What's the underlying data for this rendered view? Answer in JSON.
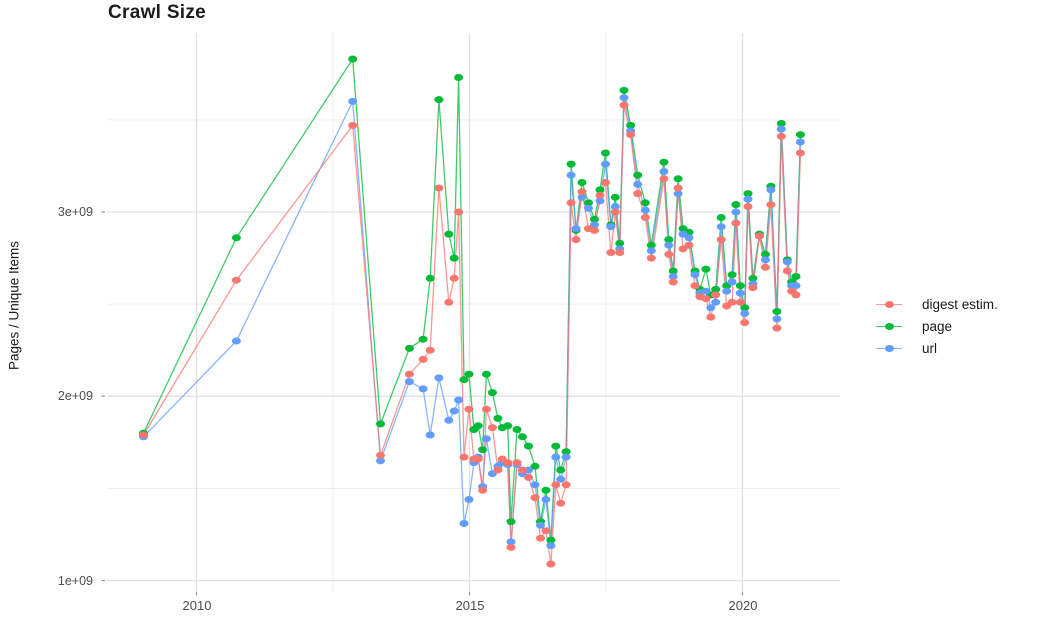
{
  "title": {
    "text": "Crawl Size"
  },
  "y_axis": {
    "label": "Pages / Unique Items",
    "ticks": [
      "3e+09",
      "2e+09",
      "1e+09"
    ]
  },
  "x_axis": {
    "ticks": [
      "2010",
      "2015",
      "2020"
    ]
  },
  "legend": {
    "items": [
      {
        "label": "digest estim.",
        "color": "#F8766D"
      },
      {
        "label": "page",
        "color": "#00BA38"
      },
      {
        "label": "url",
        "color": "#619CFF"
      }
    ]
  },
  "chart_data": {
    "type": "line",
    "title": "Crawl Size",
    "xlabel": "",
    "ylabel": "Pages / Unique Items",
    "value_unit": "count (1e9 = billions)",
    "xlim": [
      2008.4,
      2021.8
    ],
    "ylim_e9": [
      0.94,
      3.97
    ],
    "y_tick_values_e9": [
      1,
      2,
      3
    ],
    "x_tick_values": [
      2010,
      2015,
      2020
    ],
    "grid": "major+minor",
    "legend_position": "right",
    "x_years": [
      2009.03,
      2010.73,
      2012.86,
      2013.37,
      2013.9,
      2014.15,
      2014.28,
      2014.44,
      2014.62,
      2014.72,
      2014.8,
      2014.9,
      2014.99,
      2015.08,
      2015.16,
      2015.24,
      2015.31,
      2015.42,
      2015.52,
      2015.6,
      2015.7,
      2015.76,
      2015.87,
      2015.97,
      2016.08,
      2016.2,
      2016.3,
      2016.4,
      2016.49,
      2016.58,
      2016.67,
      2016.77,
      2016.86,
      2016.95,
      2017.06,
      2017.18,
      2017.29,
      2017.39,
      2017.49,
      2017.59,
      2017.67,
      2017.75,
      2017.83,
      2017.95,
      2018.08,
      2018.22,
      2018.33,
      2018.56,
      2018.65,
      2018.73,
      2018.82,
      2018.91,
      2019.02,
      2019.13,
      2019.22,
      2019.33,
      2019.42,
      2019.51,
      2019.61,
      2019.71,
      2019.81,
      2019.88,
      2019.96,
      2020.04,
      2020.1,
      2020.19,
      2020.31,
      2020.42,
      2020.52,
      2020.63,
      2020.71,
      2020.82,
      2020.9,
      2020.98,
      2021.06
    ],
    "series": [
      {
        "name": "digest estim.",
        "color": "#F8766D",
        "values_e9": [
          1.79,
          2.63,
          3.47,
          1.68,
          2.12,
          2.2,
          2.25,
          3.13,
          2.51,
          2.64,
          3.0,
          1.67,
          1.93,
          1.66,
          1.66,
          1.49,
          1.93,
          1.83,
          1.6,
          1.66,
          1.64,
          1.18,
          1.64,
          1.6,
          1.56,
          1.45,
          1.23,
          1.27,
          1.09,
          1.52,
          1.42,
          1.52,
          3.05,
          2.85,
          3.11,
          2.91,
          2.9,
          3.09,
          3.16,
          2.78,
          3.0,
          2.78,
          3.58,
          3.42,
          3.1,
          2.97,
          2.75,
          3.18,
          2.77,
          2.62,
          3.13,
          2.8,
          2.82,
          2.6,
          2.54,
          2.53,
          2.43,
          2.55,
          2.85,
          2.49,
          2.51,
          2.94,
          2.51,
          2.4,
          3.03,
          2.59,
          2.87,
          2.7,
          3.04,
          2.37,
          3.41,
          2.68,
          2.57,
          2.55,
          3.32
        ]
      },
      {
        "name": "page",
        "color": "#00BA38",
        "values_e9": [
          1.8,
          2.86,
          3.83,
          1.85,
          2.26,
          2.31,
          2.64,
          3.61,
          2.88,
          2.75,
          3.73,
          2.09,
          2.12,
          1.82,
          1.84,
          1.71,
          2.12,
          2.02,
          1.88,
          1.83,
          1.84,
          1.32,
          1.82,
          1.78,
          1.73,
          1.62,
          1.32,
          1.49,
          1.22,
          1.73,
          1.6,
          1.7,
          3.26,
          2.9,
          3.16,
          3.05,
          2.96,
          3.12,
          3.32,
          2.93,
          3.08,
          2.83,
          3.66,
          3.47,
          3.2,
          3.05,
          2.82,
          3.27,
          2.85,
          2.68,
          3.18,
          2.91,
          2.89,
          2.68,
          2.58,
          2.69,
          2.55,
          2.58,
          2.97,
          2.6,
          2.66,
          3.04,
          2.6,
          2.48,
          3.1,
          2.64,
          2.88,
          2.77,
          3.14,
          2.46,
          3.48,
          2.74,
          2.62,
          2.65,
          3.42
        ]
      },
      {
        "name": "url",
        "color": "#619CFF",
        "values_e9": [
          1.78,
          2.3,
          3.6,
          1.65,
          2.08,
          2.04,
          1.79,
          2.1,
          1.87,
          1.92,
          1.98,
          1.31,
          1.44,
          1.64,
          1.67,
          1.51,
          1.77,
          1.58,
          1.62,
          1.64,
          1.63,
          1.21,
          1.63,
          1.58,
          1.6,
          1.52,
          1.3,
          1.44,
          1.19,
          1.67,
          1.55,
          1.67,
          3.2,
          2.91,
          3.08,
          3.02,
          2.93,
          3.06,
          3.26,
          2.92,
          3.03,
          2.8,
          3.62,
          3.44,
          3.15,
          3.01,
          2.79,
          3.22,
          2.82,
          2.65,
          3.1,
          2.88,
          2.86,
          2.66,
          2.56,
          2.57,
          2.48,
          2.51,
          2.92,
          2.57,
          2.62,
          3.0,
          2.56,
          2.45,
          3.07,
          2.61,
          2.87,
          2.74,
          3.12,
          2.42,
          3.45,
          2.73,
          2.6,
          2.6,
          3.38
        ]
      }
    ]
  }
}
